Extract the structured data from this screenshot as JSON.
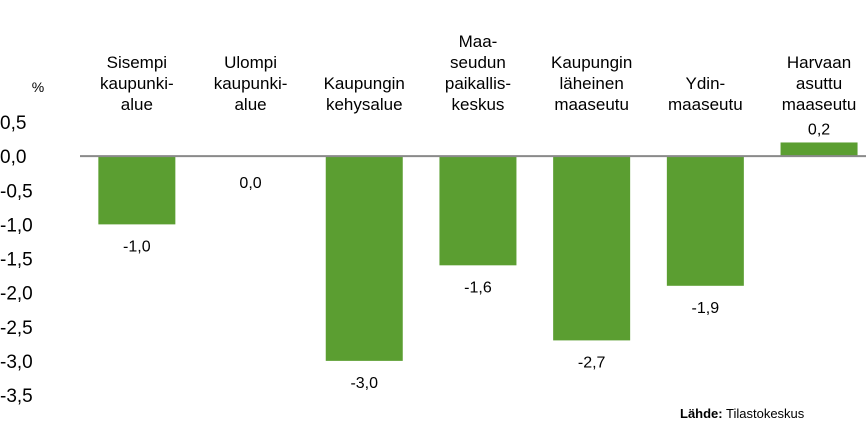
{
  "chart_data": {
    "type": "bar",
    "y_axis_label": "%",
    "categories": [
      [
        "Sisempi",
        "kaupunki-",
        "alue"
      ],
      [
        "Ulompi",
        "kaupunki-",
        "alue"
      ],
      [
        "Kaupungin",
        "kehysalue"
      ],
      [
        "Maa-",
        "seudun",
        "paikallis-",
        "keskus"
      ],
      [
        "Kaupungin",
        "läheinen",
        "maaseutu"
      ],
      [
        "Ydin-",
        "maaseutu"
      ],
      [
        "Harvaan",
        "asuttu",
        "maaseutu"
      ]
    ],
    "values": [
      -1.0,
      0.0,
      -3.0,
      -1.6,
      -2.7,
      -1.9,
      0.2
    ],
    "value_labels": [
      "-1,0",
      "0,0",
      "-3,0",
      "-1,6",
      "-2,7",
      "-1,9",
      "0,2"
    ],
    "color": "#5b9e31",
    "ylim": [
      -3.5,
      0.5
    ],
    "yticks": [
      {
        "value": 0.5,
        "label": "0,5"
      },
      {
        "value": 0.0,
        "label": "0,0"
      },
      {
        "value": -0.5,
        "label": "-0,5"
      },
      {
        "value": -1.0,
        "label": "-1,0"
      },
      {
        "value": -1.5,
        "label": "-1,5"
      },
      {
        "value": -2.0,
        "label": "-2,0"
      },
      {
        "value": -2.5,
        "label": "-2,5"
      },
      {
        "value": -3.0,
        "label": "-3,0"
      },
      {
        "value": -3.5,
        "label": "-3,5"
      }
    ],
    "source_label": "Lähde:",
    "source": "Tilastokeskus"
  }
}
